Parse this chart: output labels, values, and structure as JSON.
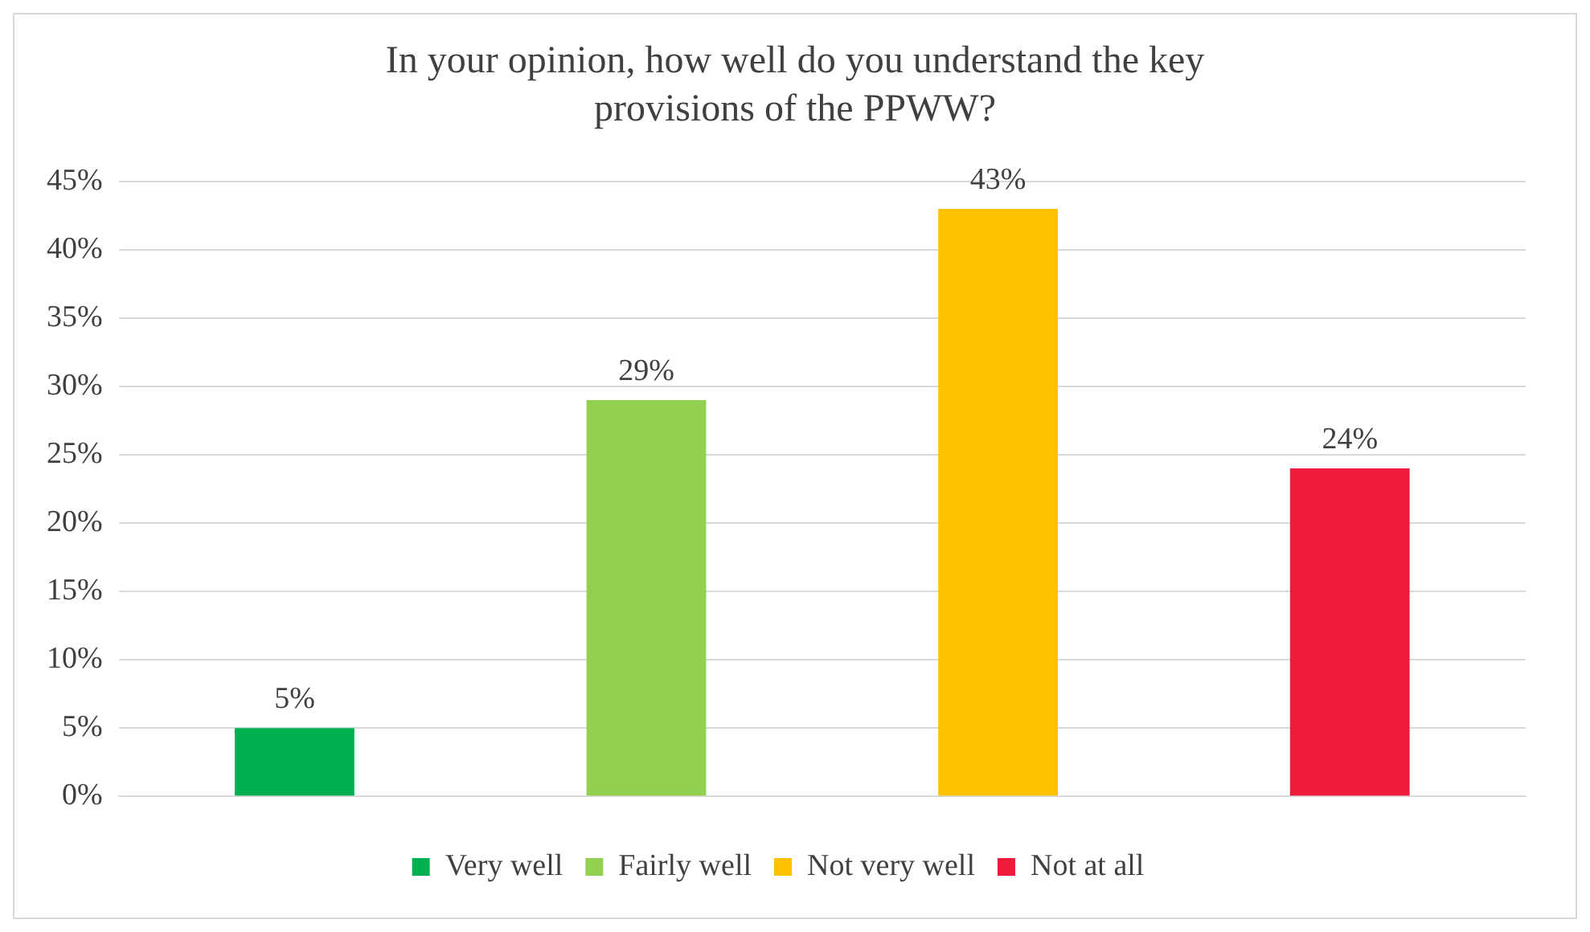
{
  "chart_data": {
    "type": "bar",
    "title": "In your opinion, how well do you understand the key provisions of the PPWW?",
    "categories": [
      null,
      null,
      null,
      null
    ],
    "series": [
      {
        "name": "Very well",
        "color": "#00b050",
        "values": [
          5,
          null,
          null,
          null
        ],
        "value_labels": [
          "5%",
          null,
          null,
          null
        ]
      },
      {
        "name": "Fairly well",
        "color": "#92d050",
        "values": [
          null,
          29,
          null,
          null
        ],
        "value_labels": [
          null,
          "29%",
          null,
          null
        ]
      },
      {
        "name": "Not very well",
        "color": "#ffc000",
        "values": [
          null,
          null,
          43,
          null
        ],
        "value_labels": [
          null,
          null,
          "43%",
          null
        ]
      },
      {
        "name": "Not at all",
        "color": "#ee1c3a",
        "values": [
          null,
          null,
          null,
          24
        ],
        "value_labels": [
          null,
          null,
          null,
          "24%"
        ]
      }
    ],
    "ylim": [
      0,
      45
    ],
    "yticks": [
      {
        "value": 0,
        "label": "0%"
      },
      {
        "value": 5,
        "label": "5%"
      },
      {
        "value": 10,
        "label": "10%"
      },
      {
        "value": 15,
        "label": "15%"
      },
      {
        "value": 20,
        "label": "20%"
      },
      {
        "value": 25,
        "label": "25%"
      },
      {
        "value": 30,
        "label": "30%"
      },
      {
        "value": 35,
        "label": "35%"
      },
      {
        "value": 40,
        "label": "40%"
      },
      {
        "value": 45,
        "label": "45%"
      }
    ],
    "grid": "y",
    "legend": "bottom"
  }
}
